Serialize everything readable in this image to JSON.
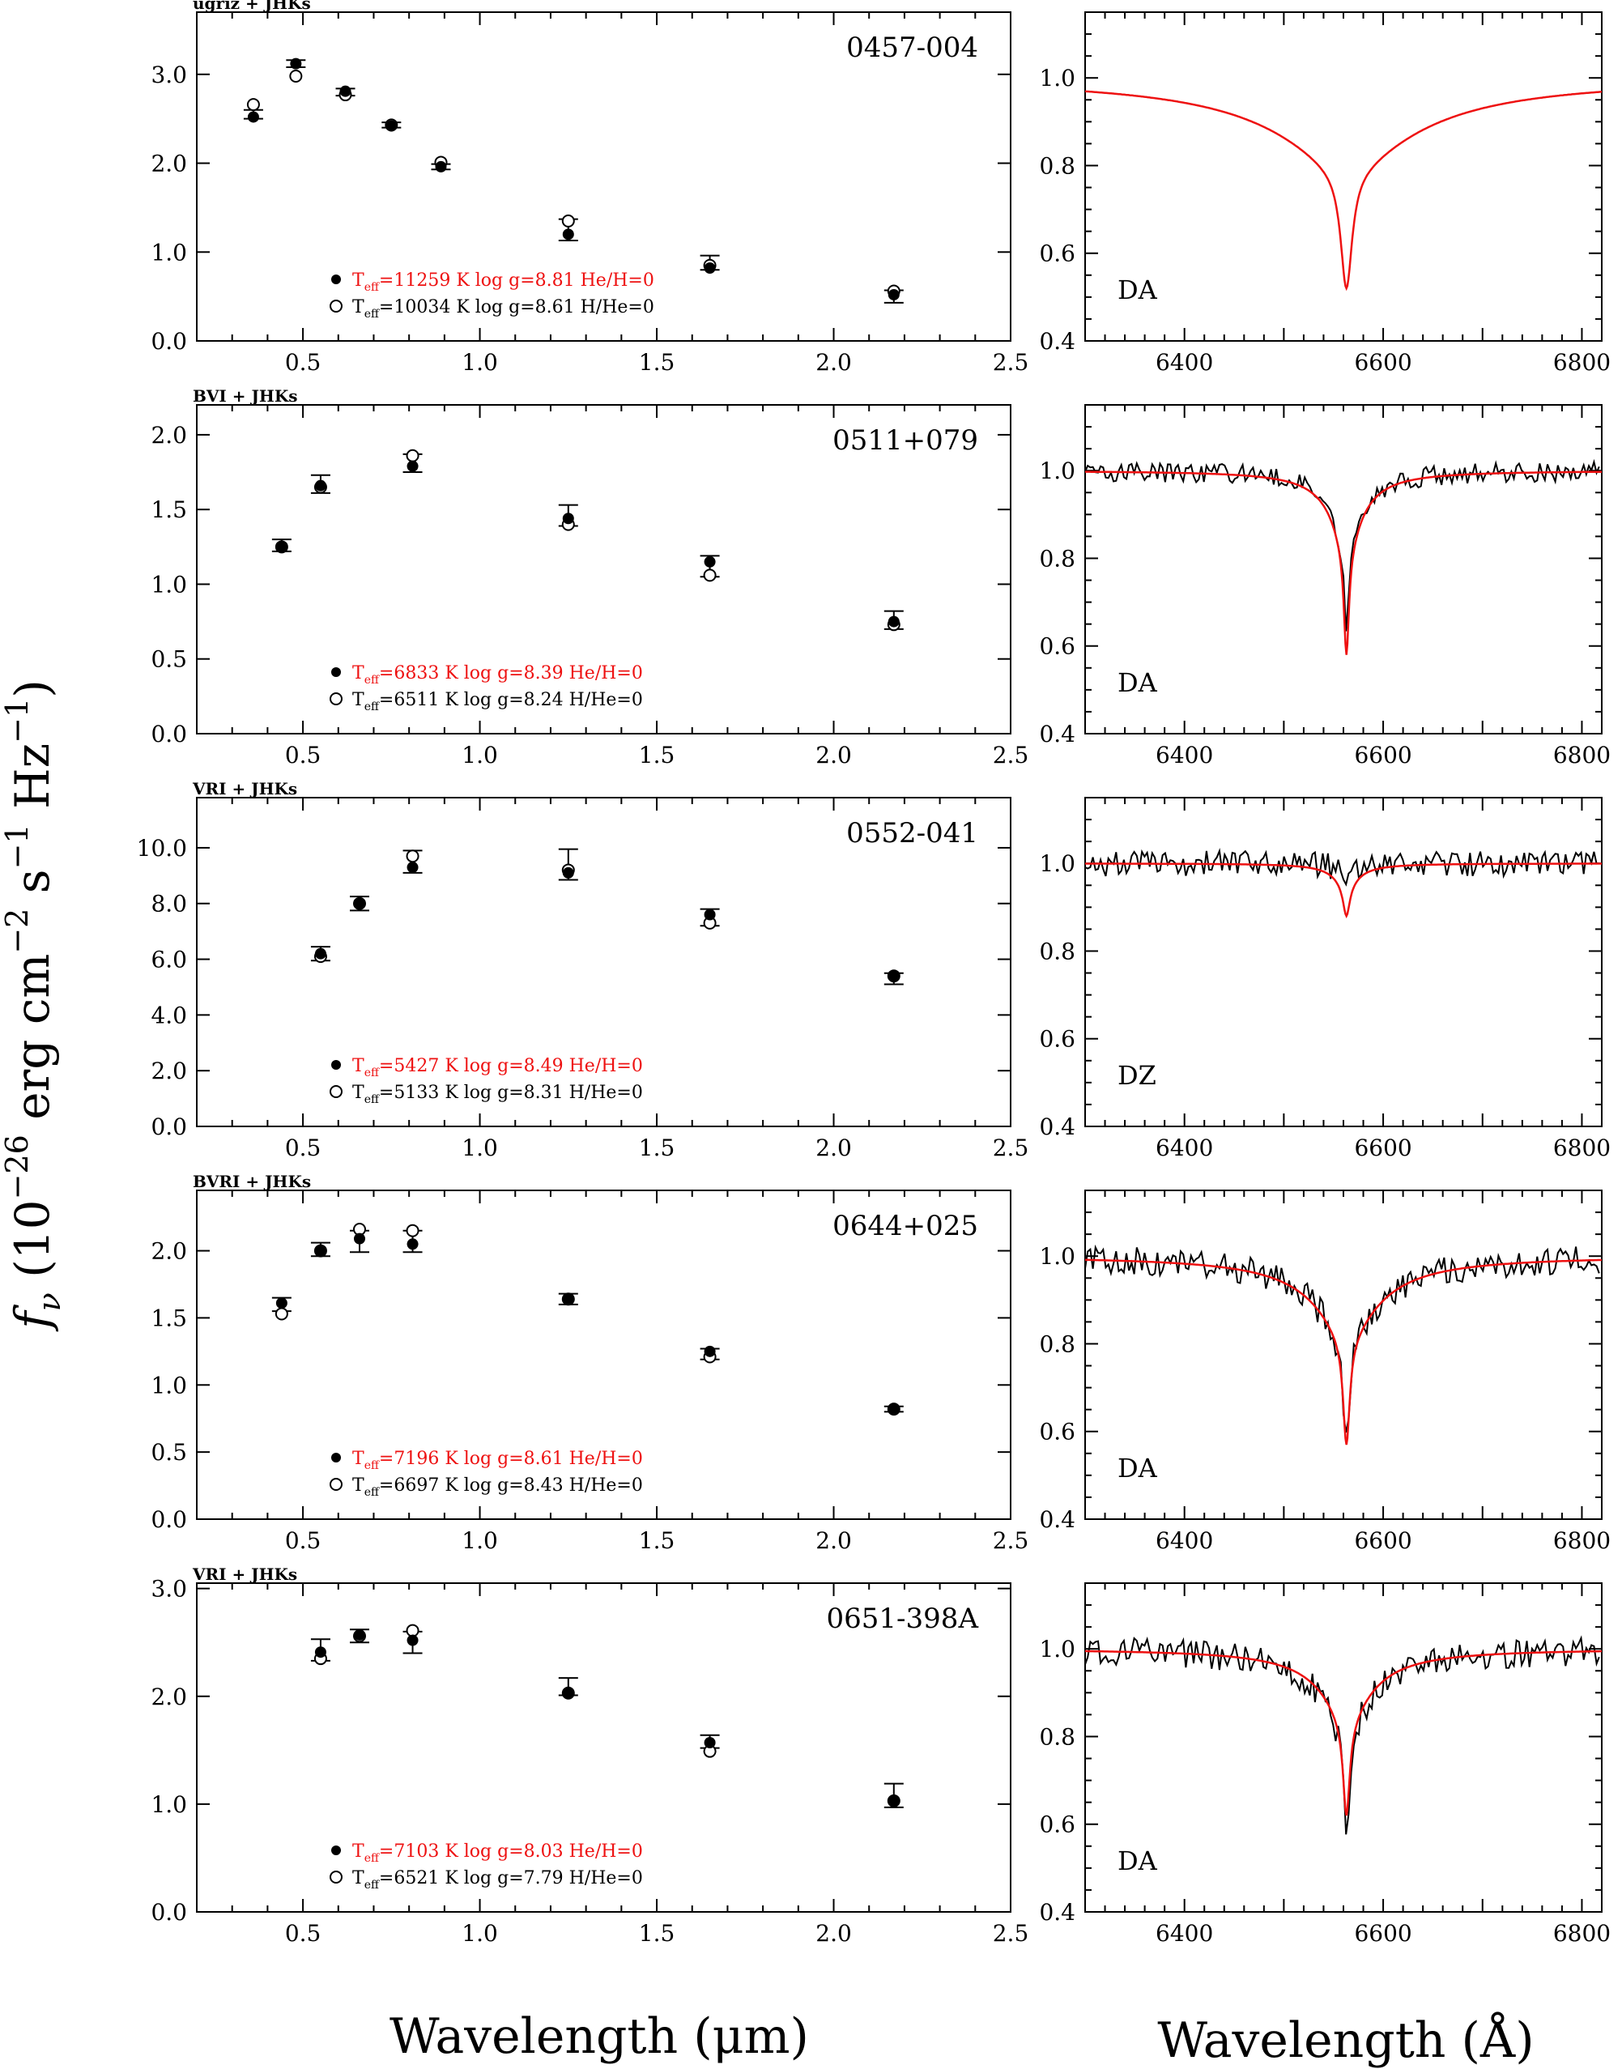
{
  "figure": {
    "ylabel_symbol": "f",
    "ylabel_sub": "ν",
    "ylabel_open": " (10",
    "ylabel_exp1": "−26",
    "ylabel_erg": " erg cm",
    "ylabel_exp2": "−2",
    "ylabel_s": " s",
    "ylabel_exp3": "−1",
    "ylabel_hz": " Hz",
    "ylabel_exp4": "−1",
    "ylabel_close": ")",
    "xlabel_left": "Wavelength (μm)",
    "xlabel_right": "Wavelength (Å)"
  },
  "colors": {
    "axis": "#000000",
    "red": "#ee1111",
    "spectrum": "#000000"
  },
  "chart_data": [
    {
      "type": "scatter",
      "name": "0457-004",
      "photometry": "ugriz + JHKs",
      "xlim": [
        0.2,
        2.5
      ],
      "ylim": [
        0.0,
        3.7
      ],
      "xticks": [
        "0.5",
        "1.0",
        "1.5",
        "2.0",
        "2.5"
      ],
      "yticks": [
        {
          "v": 0,
          "label": "0.0"
        },
        {
          "v": 1,
          "label": "1.0"
        },
        {
          "v": 2,
          "label": "2.0"
        },
        {
          "v": 3,
          "label": "3.0"
        }
      ],
      "observed": [
        {
          "x": 0.36,
          "y": 2.55,
          "err": 0.05
        },
        {
          "x": 0.48,
          "y": 3.12,
          "err": 0.04
        },
        {
          "x": 0.62,
          "y": 2.8,
          "err": 0.04
        },
        {
          "x": 0.75,
          "y": 2.43,
          "err": 0.03
        },
        {
          "x": 0.89,
          "y": 1.96,
          "err": 0.03
        },
        {
          "x": 1.25,
          "y": 1.25,
          "err": 0.12
        },
        {
          "x": 1.65,
          "y": 0.88,
          "err": 0.08
        },
        {
          "x": 2.17,
          "y": 0.5,
          "err": 0.07
        }
      ],
      "model_filled": [
        2.52,
        3.12,
        2.81,
        2.42,
        1.96,
        1.2,
        0.82,
        0.52
      ],
      "model_open": [
        2.66,
        2.98,
        2.77,
        2.43,
        2.01,
        1.35,
        0.85,
        0.56
      ],
      "legend_filled": {
        "prefix": "T",
        "sub": "eff",
        "text": "=11259 K  log g=8.81  He/H=0"
      },
      "legend_open": {
        "prefix": "T",
        "sub": "eff",
        "text": "=10034 K  log g=8.61  H/He=0"
      },
      "spectrum": {
        "xlim": [
          6300,
          6820
        ],
        "ylim": [
          0.4,
          1.15
        ],
        "xticks": [
          "6400",
          "6600",
          "6800"
        ],
        "yticks": [
          {
            "v": 0.4,
            "label": "0.4"
          },
          {
            "v": 0.6,
            "label": "0.6"
          },
          {
            "v": 0.8,
            "label": "0.8"
          },
          {
            "v": 1.0,
            "label": "1.0"
          }
        ],
        "type_label": "DA",
        "line_center": 6563,
        "model_depth": 0.48,
        "model_core": 7,
        "model_wing": 85,
        "obs_depth": null,
        "obs_noise": 0
      }
    },
    {
      "type": "scatter",
      "name": "0511+079",
      "photometry": "BVI + JHKs",
      "xlim": [
        0.2,
        2.5
      ],
      "ylim": [
        0.0,
        2.2
      ],
      "xticks": [
        "0.5",
        "1.0",
        "1.5",
        "2.0",
        "2.5"
      ],
      "yticks": [
        {
          "v": 0,
          "label": "0.0"
        },
        {
          "v": 0.5,
          "label": "0.5"
        },
        {
          "v": 1.0,
          "label": "1.0"
        },
        {
          "v": 1.5,
          "label": "1.5"
        },
        {
          "v": 2.0,
          "label": "2.0"
        }
      ],
      "observed": [
        {
          "x": 0.44,
          "y": 1.26,
          "err": 0.04
        },
        {
          "x": 0.55,
          "y": 1.67,
          "err": 0.06
        },
        {
          "x": 0.81,
          "y": 1.81,
          "err": 0.06
        },
        {
          "x": 1.25,
          "y": 1.46,
          "err": 0.07
        },
        {
          "x": 1.65,
          "y": 1.12,
          "err": 0.07
        },
        {
          "x": 2.17,
          "y": 0.76,
          "err": 0.06
        }
      ],
      "model_filled": [
        1.25,
        1.66,
        1.79,
        1.44,
        1.15,
        0.75
      ],
      "model_open": [
        1.25,
        1.65,
        1.86,
        1.4,
        1.06,
        0.73
      ],
      "legend_filled": {
        "prefix": "T",
        "sub": "eff",
        "text": "=6833 K  log g=8.39  He/H=0"
      },
      "legend_open": {
        "prefix": "T",
        "sub": "eff",
        "text": "=6511 K  log g=8.24  H/He=0"
      },
      "spectrum": {
        "xlim": [
          6300,
          6820
        ],
        "ylim": [
          0.4,
          1.15
        ],
        "xticks": [
          "6400",
          "6600",
          "6800"
        ],
        "yticks": [
          {
            "v": 0.4,
            "label": "0.4"
          },
          {
            "v": 0.6,
            "label": "0.6"
          },
          {
            "v": 0.8,
            "label": "0.8"
          },
          {
            "v": 1.0,
            "label": "1.0"
          }
        ],
        "type_label": "DA",
        "line_center": 6563,
        "model_depth": 0.42,
        "model_core": 3,
        "model_wing": 18,
        "obs_depth": 0.36,
        "obs_noise": 0.014
      }
    },
    {
      "type": "scatter",
      "name": "0552-041",
      "photometry": "VRI + JHKs",
      "xlim": [
        0.2,
        2.5
      ],
      "ylim": [
        0.0,
        11.8
      ],
      "xticks": [
        "0.5",
        "1.0",
        "1.5",
        "2.0",
        "2.5"
      ],
      "yticks": [
        {
          "v": 0,
          "label": "0.0"
        },
        {
          "v": 2,
          "label": "2.0"
        },
        {
          "v": 4,
          "label": "4.0"
        },
        {
          "v": 6,
          "label": "6.0"
        },
        {
          "v": 8,
          "label": "8.0"
        },
        {
          "v": 10,
          "label": "10.0"
        }
      ],
      "observed": [
        {
          "x": 0.55,
          "y": 6.2,
          "err": 0.25
        },
        {
          "x": 0.66,
          "y": 8.0,
          "err": 0.25
        },
        {
          "x": 0.81,
          "y": 9.5,
          "err": 0.4
        },
        {
          "x": 1.25,
          "y": 9.4,
          "err": 0.55
        },
        {
          "x": 1.65,
          "y": 7.5,
          "err": 0.3
        },
        {
          "x": 2.17,
          "y": 5.3,
          "err": 0.2
        }
      ],
      "model_filled": [
        6.2,
        8.0,
        9.3,
        9.1,
        7.6,
        5.4
      ],
      "model_open": [
        6.1,
        8.0,
        9.7,
        9.2,
        7.3,
        5.4
      ],
      "legend_filled": {
        "prefix": "T",
        "sub": "eff",
        "text": "=5427 K  log g=8.49  He/H=0"
      },
      "legend_open": {
        "prefix": "T",
        "sub": "eff",
        "text": "=5133 K  log g=8.31  H/He=0"
      },
      "spectrum": {
        "xlim": [
          6300,
          6820
        ],
        "ylim": [
          0.4,
          1.15
        ],
        "xticks": [
          "6400",
          "6600",
          "6800"
        ],
        "yticks": [
          {
            "v": 0.4,
            "label": "0.4"
          },
          {
            "v": 0.6,
            "label": "0.6"
          },
          {
            "v": 0.8,
            "label": "0.8"
          },
          {
            "v": 1.0,
            "label": "1.0"
          }
        ],
        "type_label": "DZ",
        "line_center": 6563,
        "model_depth": 0.12,
        "model_core": 4,
        "model_wing": 14,
        "obs_depth": 0.03,
        "obs_noise": 0.018
      }
    },
    {
      "type": "scatter",
      "name": "0644+025",
      "photometry": "BVRI + JHKs",
      "xlim": [
        0.2,
        2.5
      ],
      "ylim": [
        0.0,
        2.45
      ],
      "xticks": [
        "0.5",
        "1.0",
        "1.5",
        "2.0",
        "2.5"
      ],
      "yticks": [
        {
          "v": 0,
          "label": "0.0"
        },
        {
          "v": 0.5,
          "label": "0.5"
        },
        {
          "v": 1.0,
          "label": "1.0"
        },
        {
          "v": 1.5,
          "label": "1.5"
        },
        {
          "v": 2.0,
          "label": "2.0"
        }
      ],
      "observed": [
        {
          "x": 0.44,
          "y": 1.6,
          "err": 0.05
        },
        {
          "x": 0.55,
          "y": 2.01,
          "err": 0.05
        },
        {
          "x": 0.66,
          "y": 2.07,
          "err": 0.08
        },
        {
          "x": 0.81,
          "y": 2.07,
          "err": 0.08
        },
        {
          "x": 1.25,
          "y": 1.64,
          "err": 0.04
        },
        {
          "x": 1.65,
          "y": 1.23,
          "err": 0.04
        },
        {
          "x": 2.17,
          "y": 0.82,
          "err": 0.02
        }
      ],
      "model_filled": [
        1.61,
        2.0,
        2.09,
        2.05,
        1.64,
        1.25,
        0.82
      ],
      "model_open": [
        1.53,
        2.0,
        2.16,
        2.15,
        1.64,
        1.21,
        0.82
      ],
      "legend_filled": {
        "prefix": "T",
        "sub": "eff",
        "text": "=7196 K  log g=8.61  He/H=0"
      },
      "legend_open": {
        "prefix": "T",
        "sub": "eff",
        "text": "=6697 K  log g=8.43  H/He=0"
      },
      "spectrum": {
        "xlim": [
          6300,
          6820
        ],
        "ylim": [
          0.4,
          1.15
        ],
        "xticks": [
          "6400",
          "6600",
          "6800"
        ],
        "yticks": [
          {
            "v": 0.4,
            "label": "0.4"
          },
          {
            "v": 0.6,
            "label": "0.6"
          },
          {
            "v": 0.8,
            "label": "0.8"
          },
          {
            "v": 1.0,
            "label": "1.0"
          }
        ],
        "type_label": "DA",
        "line_center": 6563,
        "model_depth": 0.43,
        "model_core": 4,
        "model_wing": 38,
        "obs_depth": 0.42,
        "obs_noise": 0.02
      }
    },
    {
      "type": "scatter",
      "name": "0651-398A",
      "photometry": "VRI + JHKs",
      "xlim": [
        0.2,
        2.5
      ],
      "ylim": [
        0.0,
        3.05
      ],
      "xticks": [
        "0.5",
        "1.0",
        "1.5",
        "2.0",
        "2.5"
      ],
      "yticks": [
        {
          "v": 0,
          "label": "0.0"
        },
        {
          "v": 1,
          "label": "1.0"
        },
        {
          "v": 2,
          "label": "2.0"
        },
        {
          "v": 3,
          "label": "3.0"
        }
      ],
      "observed": [
        {
          "x": 0.55,
          "y": 2.43,
          "err": 0.1
        },
        {
          "x": 0.66,
          "y": 2.56,
          "err": 0.06
        },
        {
          "x": 0.81,
          "y": 2.5,
          "err": 0.1
        },
        {
          "x": 1.25,
          "y": 2.09,
          "err": 0.08
        },
        {
          "x": 1.65,
          "y": 1.58,
          "err": 0.06
        },
        {
          "x": 2.17,
          "y": 1.08,
          "err": 0.11
        }
      ],
      "model_filled": [
        2.41,
        2.57,
        2.52,
        2.03,
        1.57,
        1.03
      ],
      "model_open": [
        2.35,
        2.56,
        2.61,
        2.03,
        1.49,
        1.03
      ],
      "legend_filled": {
        "prefix": "T",
        "sub": "eff",
        "text": "=7103 K  log g=8.03  He/H=0"
      },
      "legend_open": {
        "prefix": "T",
        "sub": "eff",
        "text": "=6521 K  log g=7.79  H/He=0"
      },
      "spectrum": {
        "xlim": [
          6300,
          6820
        ],
        "ylim": [
          0.4,
          1.15
        ],
        "xticks": [
          "6400",
          "6600",
          "6800"
        ],
        "yticks": [
          {
            "v": 0.4,
            "label": "0.4"
          },
          {
            "v": 0.6,
            "label": "0.6"
          },
          {
            "v": 0.8,
            "label": "0.8"
          },
          {
            "v": 1.0,
            "label": "1.0"
          }
        ],
        "type_label": "DA",
        "line_center": 6563,
        "model_depth": 0.38,
        "model_core": 4,
        "model_wing": 30,
        "obs_depth": 0.41,
        "obs_noise": 0.02
      }
    }
  ]
}
